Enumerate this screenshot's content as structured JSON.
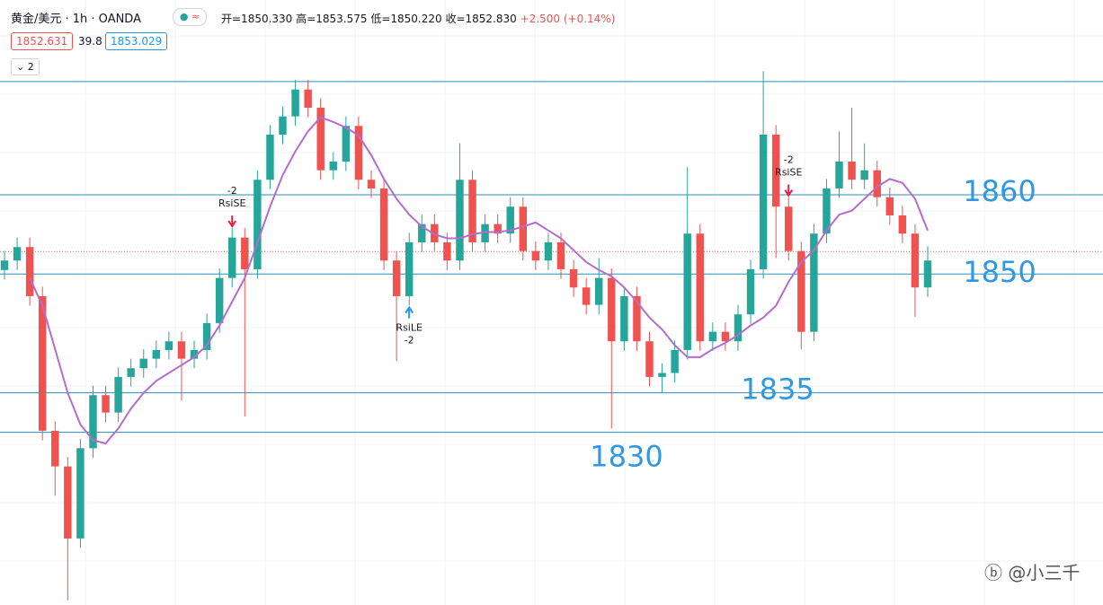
{
  "header": {
    "title": "黄金/美元 · 1h · OANDA",
    "ohlc": [
      "开=1850.330",
      "高=1853.575",
      "低=1850.220",
      "收=1852.830",
      "+2.500 (+0.14%)"
    ],
    "bid": "1852.631",
    "spread": "39.8",
    "ask": "1853.029",
    "indicators": 2,
    "watermark": "@小三千"
  },
  "chart_data": {
    "type": "candlestick",
    "ylim": [
      1808.2,
      1884.6
    ],
    "up_color": "#26a69a",
    "down_color": "#ef5350",
    "ma_color": "#b56bcf",
    "level_color": "#2a8fb8",
    "level_label_color": "#2f98e0",
    "open": [
      1850.5,
      1851.7,
      1853.4,
      1847.2,
      1830.2,
      1825.7,
      1816.6,
      1828.0,
      1834.7,
      1832.5,
      1837.0,
      1838.1,
      1839.3,
      1840.4,
      1841.5,
      1839.3,
      1840.4,
      1843.8,
      1849.5,
      1854.6,
      1850.6,
      1861.9,
      1867.6,
      1869.9,
      1873.3,
      1871.0,
      1863.1,
      1864.2,
      1868.7,
      1861.9,
      1860.8,
      1851.7,
      1847.2,
      1854.0,
      1856.3,
      1854.0,
      1851.7,
      1861.9,
      1854.0,
      1856.3,
      1855.1,
      1858.5,
      1852.9,
      1851.7,
      1854.0,
      1850.6,
      1848.3,
      1846.1,
      1849.5,
      1841.5,
      1847.2,
      1841.5,
      1837.0,
      1837.5,
      1840.4,
      1855.1,
      1841.5,
      1842.7,
      1841.5,
      1844.9,
      1850.6,
      1867.6,
      1858.5,
      1852.9,
      1842.7,
      1855.1,
      1860.8,
      1864.2,
      1861.9,
      1863.1,
      1859.7,
      1857.4,
      1855.1,
      1848.3
    ],
    "high": [
      1852.9,
      1854.6,
      1854.6,
      1848.4,
      1831.4,
      1826.9,
      1829.2,
      1835.9,
      1835.9,
      1838.2,
      1839.3,
      1840.5,
      1841.6,
      1842.7,
      1842.7,
      1841.6,
      1845.0,
      1850.7,
      1855.8,
      1855.8,
      1863.1,
      1868.8,
      1871.1,
      1874.5,
      1874.5,
      1872.2,
      1865.4,
      1869.9,
      1869.9,
      1863.1,
      1862.0,
      1852.9,
      1855.2,
      1857.5,
      1857.5,
      1855.2,
      1866.5,
      1863.1,
      1857.5,
      1857.5,
      1859.7,
      1859.7,
      1854.1,
      1855.2,
      1855.2,
      1851.8,
      1849.5,
      1852.0,
      1850.7,
      1848.4,
      1848.4,
      1842.7,
      1838.7,
      1841.6,
      1863.5,
      1856.3,
      1843.9,
      1843.9,
      1846.1,
      1851.8,
      1875.6,
      1868.8,
      1859.7,
      1854.1,
      1856.3,
      1862.0,
      1868.0,
      1871.0,
      1866.5,
      1864.3,
      1860.9,
      1858.6,
      1856.3,
      1853.5
    ],
    "low": [
      1849.3,
      1850.5,
      1846.0,
      1829.0,
      1822.0,
      1808.8,
      1815.4,
      1826.8,
      1831.3,
      1831.3,
      1835.8,
      1836.9,
      1838.1,
      1839.2,
      1834.0,
      1838.1,
      1839.2,
      1842.6,
      1848.3,
      1832.0,
      1849.4,
      1860.7,
      1866.4,
      1868.7,
      1869.8,
      1861.9,
      1861.9,
      1863.0,
      1860.7,
      1859.6,
      1850.5,
      1839.0,
      1846.0,
      1852.8,
      1852.8,
      1850.5,
      1850.5,
      1852.8,
      1852.8,
      1853.9,
      1853.9,
      1851.7,
      1850.5,
      1850.5,
      1849.4,
      1847.1,
      1844.9,
      1844.9,
      1830.5,
      1840.3,
      1840.3,
      1835.8,
      1835.0,
      1836.3,
      1839.2,
      1840.3,
      1840.3,
      1840.3,
      1840.3,
      1843.7,
      1849.4,
      1852.0,
      1851.7,
      1840.5,
      1841.5,
      1853.9,
      1859.6,
      1860.7,
      1860.7,
      1858.5,
      1856.2,
      1853.9,
      1844.6,
      1847.1
    ],
    "close": [
      1851.7,
      1853.4,
      1847.2,
      1830.2,
      1825.7,
      1816.6,
      1828.0,
      1834.7,
      1832.5,
      1837.0,
      1838.1,
      1839.3,
      1840.4,
      1841.5,
      1839.3,
      1840.4,
      1843.8,
      1849.5,
      1854.6,
      1850.6,
      1861.9,
      1867.6,
      1869.9,
      1873.3,
      1871.0,
      1863.1,
      1864.2,
      1868.7,
      1861.9,
      1860.8,
      1851.7,
      1847.2,
      1854.0,
      1856.3,
      1854.0,
      1851.7,
      1861.9,
      1854.0,
      1856.3,
      1855.1,
      1858.5,
      1852.9,
      1851.7,
      1854.0,
      1850.6,
      1848.3,
      1846.1,
      1849.5,
      1841.5,
      1847.2,
      1841.5,
      1837.0,
      1837.5,
      1840.4,
      1855.1,
      1841.5,
      1842.7,
      1841.5,
      1844.9,
      1850.6,
      1867.6,
      1858.5,
      1852.9,
      1842.7,
      1855.1,
      1860.8,
      1864.2,
      1861.9,
      1863.1,
      1859.7,
      1857.4,
      1855.1,
      1848.3,
      1851.7
    ],
    "ma_values": [
      null,
      null,
      1849.5,
      1846,
      1840.5,
      1835,
      1831,
      1829,
      1828.6,
      1830.5,
      1833,
      1835,
      1836.5,
      1837.5,
      1838.5,
      1839.5,
      1841,
      1843.5,
      1846.5,
      1849.5,
      1854,
      1858.5,
      1862.5,
      1865.5,
      1868,
      1869.8,
      1869.2,
      1868.5,
      1867.5,
      1865,
      1862,
      1859.5,
      1857.5,
      1856,
      1855,
      1854.5,
      1854.5,
      1855,
      1855.3,
      1855.3,
      1855.5,
      1856,
      1856.5,
      1855.5,
      1854.5,
      1853,
      1851.5,
      1850.5,
      1849.7,
      1848.3,
      1846.5,
      1844.5,
      1843,
      1841,
      1839.5,
      1839.5,
      1840.5,
      1841.3,
      1842.3,
      1843.5,
      1844.5,
      1846,
      1849,
      1851.5,
      1853,
      1855.5,
      1857.5,
      1858,
      1859.5,
      1861,
      1862,
      1861.5,
      1859.5,
      1855.5
    ],
    "levels": [
      {
        "value": 1874.3
      },
      {
        "value": 1860,
        "label": "1860"
      },
      {
        "value": 1850,
        "label": "1850"
      },
      {
        "value": 1835,
        "label": "1835"
      },
      {
        "value": 1830,
        "label": "1830"
      }
    ],
    "last_price": 1852.83,
    "signals": [
      {
        "index": 18,
        "side": "short",
        "label": "RsiSE",
        "qty": -2
      },
      {
        "index": 32,
        "side": "long",
        "label": "RsiLE",
        "qty": -2
      },
      {
        "index": 62,
        "side": "short",
        "label": "RsiSE",
        "qty": -2
      }
    ]
  }
}
